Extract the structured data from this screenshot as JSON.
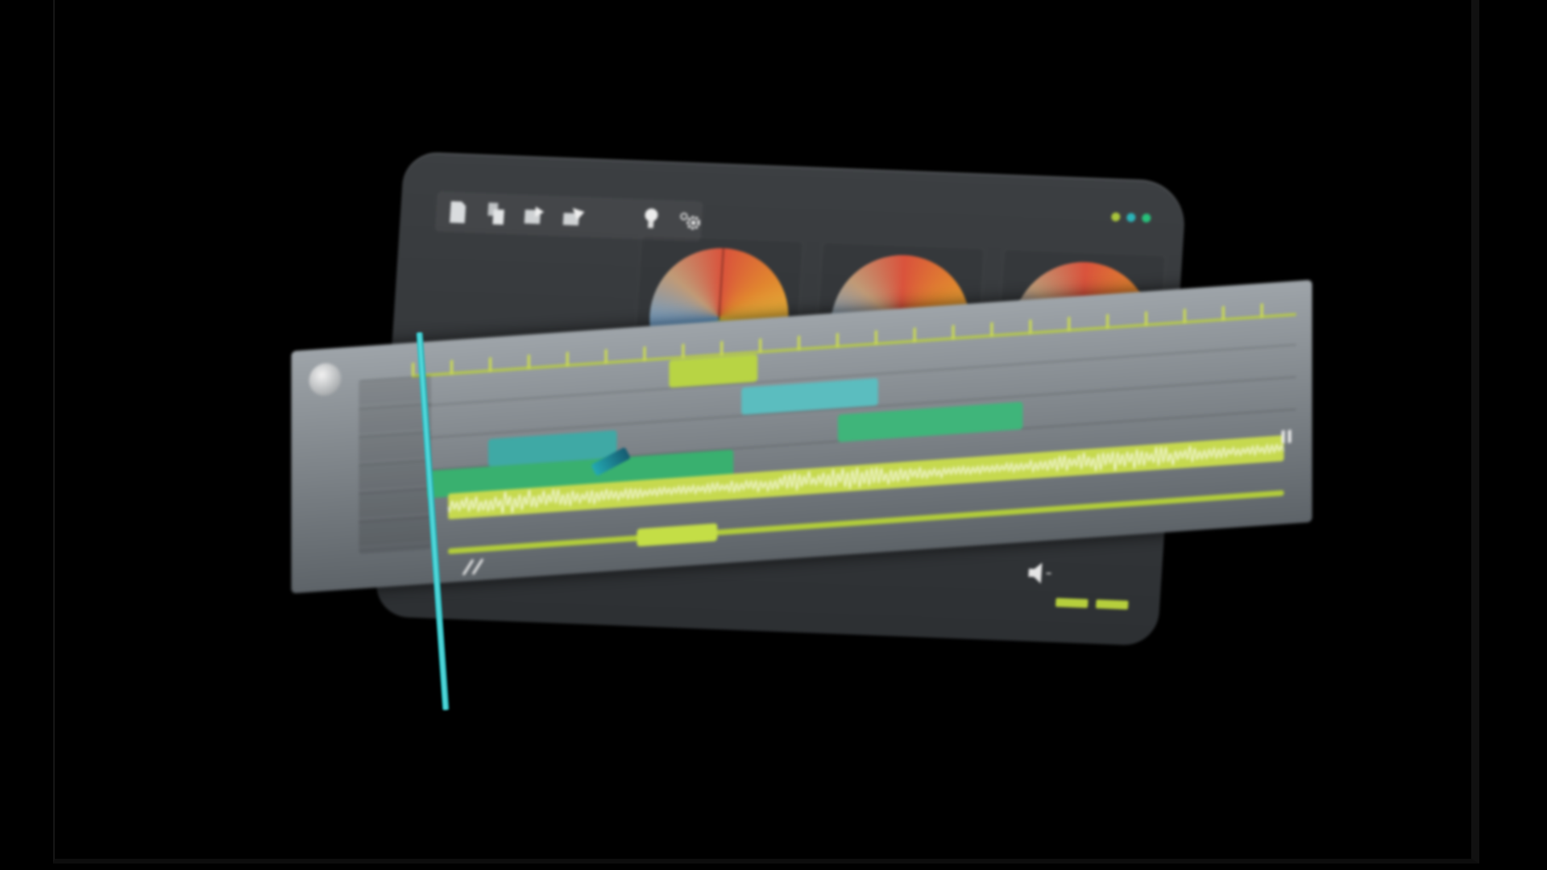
{
  "app": {
    "toolbar": {
      "icons": [
        "new-file-icon",
        "copy-icon",
        "export-icon",
        "share-icon",
        "lightbulb-icon",
        "settings-icon"
      ]
    },
    "window_controls": {
      "colors": [
        "#a9c43c",
        "#2bb3b8",
        "#27c07a"
      ]
    },
    "color_wheels": [
      {
        "name": "color-wheel-1"
      },
      {
        "name": "color-wheel-2"
      },
      {
        "name": "color-wheel-3"
      }
    ],
    "audio": {
      "icon": "volume-icon",
      "meters": 2
    }
  },
  "timeline": {
    "tracks": [
      {
        "name": "track-1",
        "clips": [
          {
            "start": 0.25,
            "end": 0.33,
            "color": "#b8d444"
          }
        ]
      },
      {
        "name": "track-2",
        "clips": [
          {
            "start": 0.33,
            "end": 0.45,
            "color": "#5bbdbf"
          }
        ]
      },
      {
        "name": "track-3",
        "clips": [
          {
            "start": 0.05,
            "end": 0.18,
            "color": "#3fa9a5"
          },
          {
            "start": 0.4,
            "end": 0.55,
            "color": "#3fb57a"
          }
        ]
      },
      {
        "name": "track-4",
        "clips": [
          {
            "start": 0.0,
            "end": 0.28,
            "color": "#39b06f"
          }
        ]
      }
    ],
    "audio_waveform": {
      "color": "#c6d94e"
    },
    "automation": {
      "color": "#b2cd3a"
    },
    "playhead_color": "#2fc8cc",
    "accent": "#cfe04a"
  }
}
